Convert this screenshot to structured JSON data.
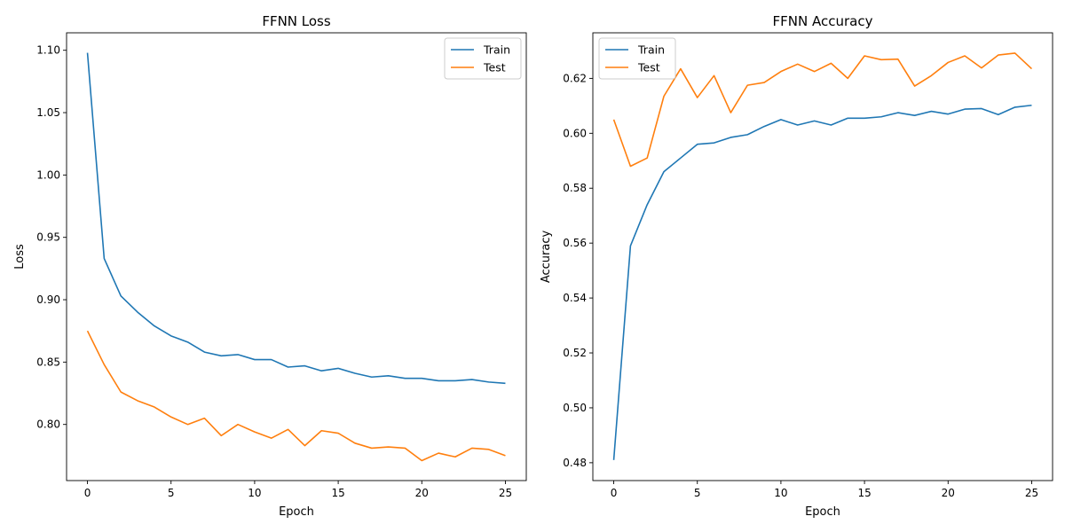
{
  "colors": {
    "train": "#1f77b4",
    "test": "#ff7f0e"
  },
  "chart_data": [
    {
      "type": "line",
      "title": "FFNN Loss",
      "xlabel": "Epoch",
      "ylabel": "Loss",
      "xlim": [
        -1.25,
        26.25
      ],
      "ylim": [
        0.755,
        1.114
      ],
      "xticks": [
        0,
        5,
        10,
        15,
        20,
        25
      ],
      "xtick_labels": [
        "0",
        "5",
        "10",
        "15",
        "20",
        "25"
      ],
      "yticks": [
        0.8,
        0.85,
        0.9,
        0.95,
        1.0,
        1.05,
        1.1
      ],
      "ytick_labels": [
        "0.80",
        "0.85",
        "0.90",
        "0.95",
        "1.00",
        "1.05",
        "1.10"
      ],
      "grid": false,
      "legend": "upper-right",
      "x": [
        0,
        1,
        2,
        3,
        4,
        5,
        6,
        7,
        8,
        9,
        10,
        11,
        12,
        13,
        14,
        15,
        16,
        17,
        18,
        19,
        20,
        21,
        22,
        23,
        24,
        25
      ],
      "series": [
        {
          "name": "Train",
          "color": "#1f77b4",
          "values": [
            1.098,
            0.933,
            0.903,
            0.89,
            0.879,
            0.871,
            0.866,
            0.858,
            0.855,
            0.856,
            0.852,
            0.852,
            0.846,
            0.847,
            0.843,
            0.845,
            0.841,
            0.838,
            0.839,
            0.837,
            0.837,
            0.835,
            0.835,
            0.836,
            0.834,
            0.833
          ]
        },
        {
          "name": "Test",
          "color": "#ff7f0e",
          "values": [
            0.875,
            0.848,
            0.826,
            0.819,
            0.814,
            0.806,
            0.8,
            0.805,
            0.791,
            0.8,
            0.794,
            0.789,
            0.796,
            0.783,
            0.795,
            0.793,
            0.785,
            0.781,
            0.782,
            0.781,
            0.771,
            0.777,
            0.774,
            0.781,
            0.78,
            0.775
          ]
        }
      ]
    },
    {
      "type": "line",
      "title": "FFNN Accuracy",
      "xlabel": "Epoch",
      "ylabel": "Accuracy",
      "xlim": [
        -1.25,
        26.25
      ],
      "ylim": [
        0.4735,
        0.6366
      ],
      "xticks": [
        0,
        5,
        10,
        15,
        20,
        25
      ],
      "xtick_labels": [
        "0",
        "5",
        "10",
        "15",
        "20",
        "25"
      ],
      "yticks": [
        0.48,
        0.5,
        0.52,
        0.54,
        0.56,
        0.58,
        0.6,
        0.62
      ],
      "ytick_labels": [
        "0.48",
        "0.50",
        "0.52",
        "0.54",
        "0.56",
        "0.58",
        "0.60",
        "0.62"
      ],
      "grid": false,
      "legend": "upper-left",
      "x": [
        0,
        1,
        2,
        3,
        4,
        5,
        6,
        7,
        8,
        9,
        10,
        11,
        12,
        13,
        14,
        15,
        16,
        17,
        18,
        19,
        20,
        21,
        22,
        23,
        24,
        25
      ],
      "series": [
        {
          "name": "Train",
          "color": "#1f77b4",
          "values": [
            0.481,
            0.559,
            0.574,
            0.586,
            0.591,
            0.596,
            0.5965,
            0.5985,
            0.5995,
            0.6025,
            0.605,
            0.603,
            0.6045,
            0.603,
            0.6055,
            0.6055,
            0.606,
            0.6075,
            0.6065,
            0.608,
            0.607,
            0.6088,
            0.609,
            0.6068,
            0.6095,
            0.6102
          ]
        },
        {
          "name": "Test",
          "color": "#ff7f0e",
          "values": [
            0.605,
            0.588,
            0.591,
            0.6135,
            0.6235,
            0.613,
            0.621,
            0.6075,
            0.6175,
            0.6185,
            0.6225,
            0.6252,
            0.6225,
            0.6255,
            0.62,
            0.6282,
            0.6268,
            0.627,
            0.6172,
            0.621,
            0.6258,
            0.6282,
            0.6238,
            0.6285,
            0.6292,
            0.6235
          ]
        }
      ]
    }
  ]
}
